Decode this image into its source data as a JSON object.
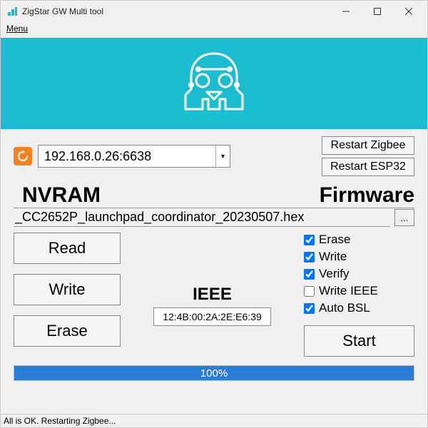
{
  "window": {
    "title": "ZigStar GW Multi tool"
  },
  "menu": {
    "label": "Menu"
  },
  "banner": {
    "bg_color": "#1cbdd1"
  },
  "connection": {
    "address": "192.168.0.26:6638",
    "refresh_color": "#f58220"
  },
  "restart": {
    "zigbee": "Restart Zigbee",
    "esp32": "Restart ESP32"
  },
  "nvram": {
    "heading": "NVRAM",
    "read": "Read",
    "write": "Write",
    "erase": "Erase"
  },
  "firmware": {
    "heading": "Firmware",
    "file": "_CC2652P_launchpad_coordinator_20230507.hex",
    "browse": "...",
    "checks": {
      "erase": {
        "label": "Erase",
        "checked": true
      },
      "write": {
        "label": "Write",
        "checked": true
      },
      "verify": {
        "label": "Verify",
        "checked": true
      },
      "write_ieee": {
        "label": "Write IEEE",
        "checked": false
      },
      "auto_bsl": {
        "label": "Auto BSL",
        "checked": true
      }
    },
    "start": "Start"
  },
  "ieee": {
    "label": "IEEE",
    "value": "12:4B:00:2A:2E:E6:39"
  },
  "progress": {
    "percent": 100,
    "text": "100%",
    "fill_color": "#2b7cd3"
  },
  "status": {
    "text": "All is OK. Restarting Zigbee..."
  }
}
